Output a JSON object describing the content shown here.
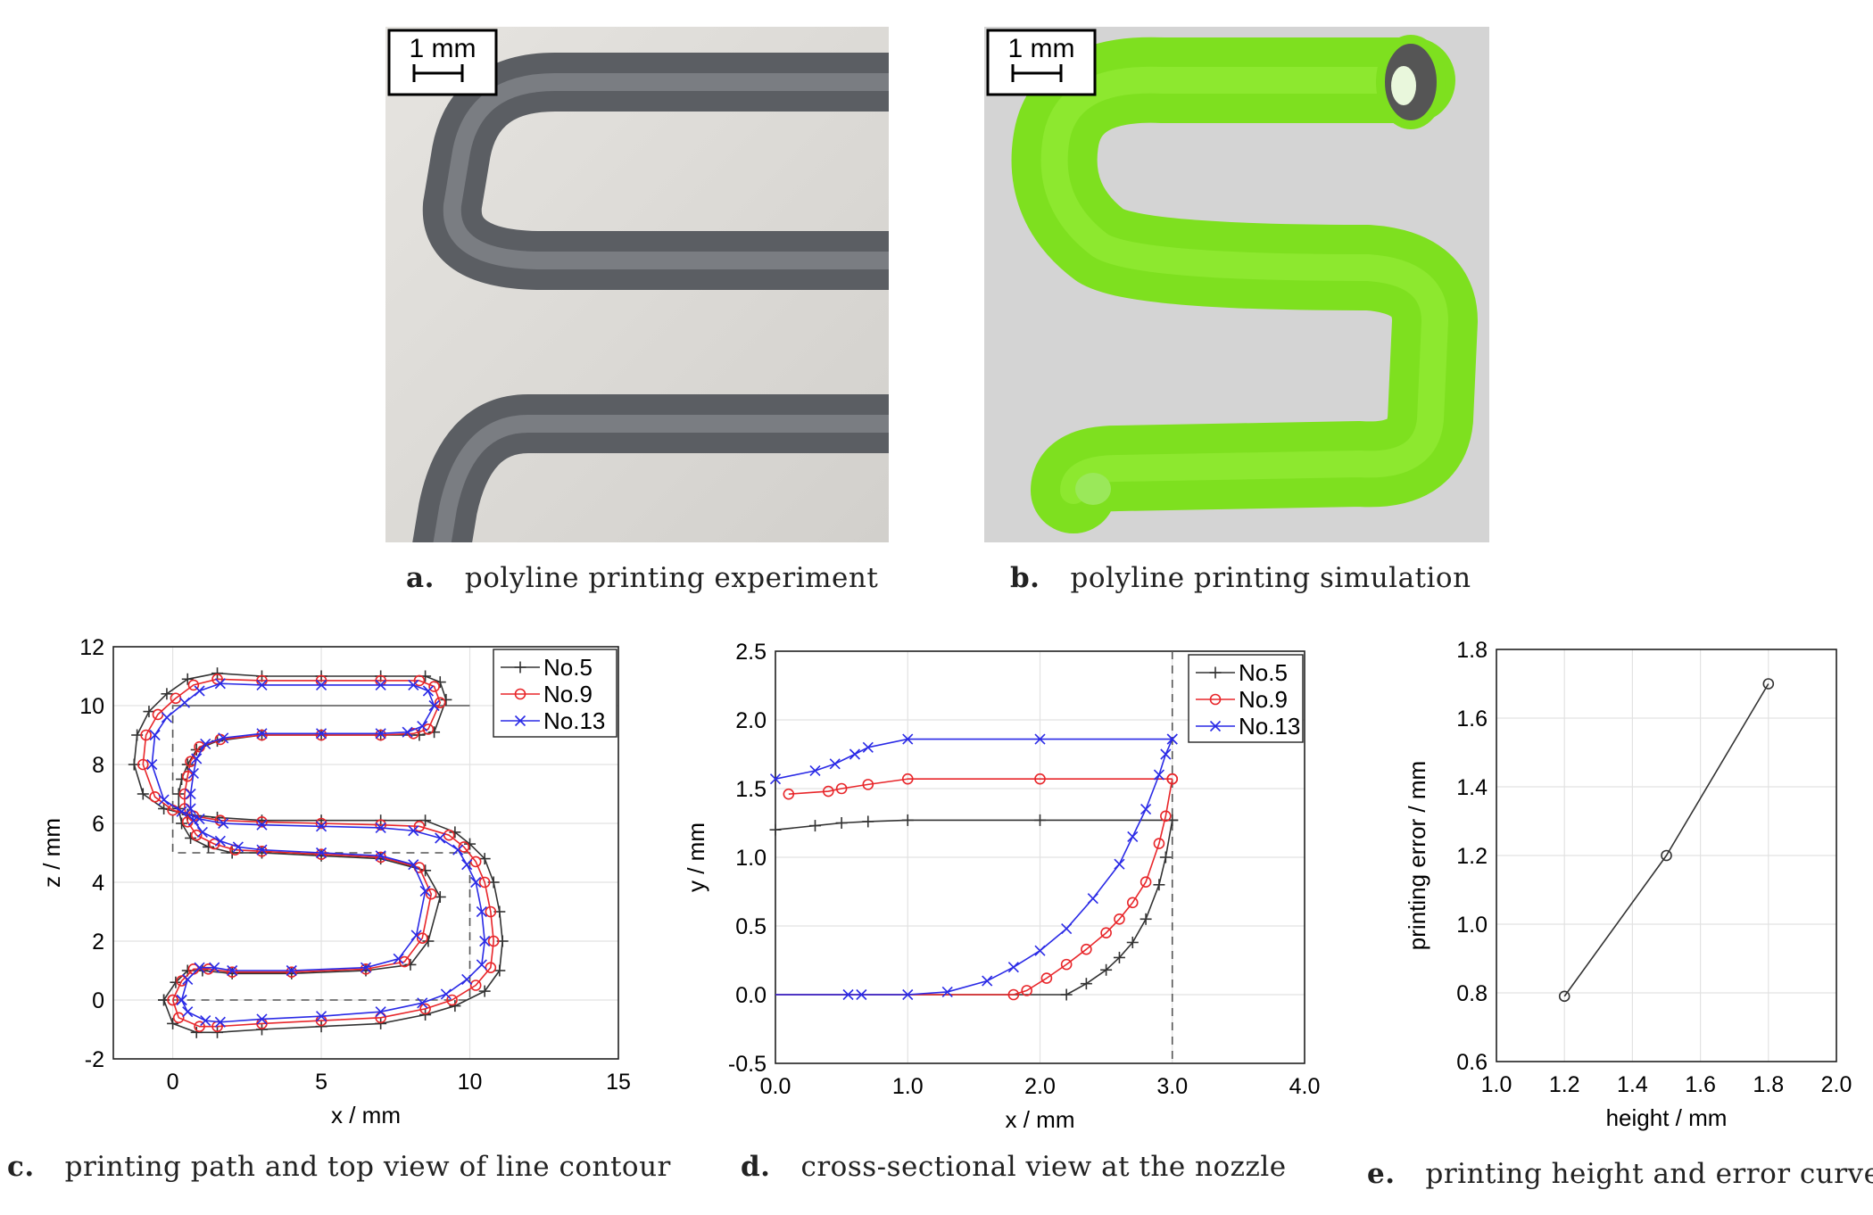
{
  "panels": {
    "a": {
      "letter": "a.",
      "caption": "polyline printing experiment",
      "scale_label": "1 mm"
    },
    "b": {
      "letter": "b.",
      "caption": "polyline printing simulation",
      "scale_label": "1 mm"
    },
    "c": {
      "letter": "c.",
      "caption": "printing path and top view of line contour"
    },
    "d": {
      "letter": "d.",
      "caption": "cross-sectional view at the nozzle"
    },
    "e": {
      "letter": "e.",
      "caption": "printing height and error curve"
    }
  },
  "colors": {
    "no5": "#333333",
    "no9": "#e8262a",
    "no13": "#2a2ae6",
    "filament": "#6a6d72",
    "sim": "#7ee01f",
    "simbg": "#d4d4d4"
  },
  "chart_data": [
    {
      "id": "c",
      "type": "line",
      "xlabel": "x / mm",
      "ylabel": "z / mm",
      "xlim": [
        -2,
        15
      ],
      "ylim": [
        -2,
        12
      ],
      "xticks": [
        0,
        5,
        10,
        15
      ],
      "yticks": [
        -2,
        0,
        2,
        4,
        6,
        8,
        10,
        12
      ],
      "legend_position": "top-right",
      "path": {
        "x": [
          0,
          0,
          10,
          10,
          0,
          0,
          10,
          10,
          0
        ],
        "y": [
          0,
          0,
          0,
          5,
          5,
          10,
          10,
          10,
          10
        ]
      },
      "series": [
        {
          "name": "No.5",
          "color": "#333333",
          "marker": "plus",
          "x": [
            -0.3,
            0.0,
            0.8,
            1.5,
            3.0,
            5.0,
            7.0,
            8.5,
            9.5,
            10.5,
            11.0,
            11.1,
            11.0,
            10.8,
            10.5,
            10.0,
            9.5,
            8.5,
            7.0,
            5.0,
            3.0,
            1.5,
            0.5,
            -0.3,
            -1.0,
            -1.3,
            -1.2,
            -0.8,
            -0.2,
            0.5,
            1.5,
            3.0,
            5.0,
            7.0,
            8.5,
            9.0,
            9.2,
            8.8,
            8.3,
            7.0,
            5.0,
            3.0,
            1.5,
            0.8,
            0.5,
            0.3,
            0.2,
            0.2,
            0.3,
            0.6,
            1.2,
            2.0,
            3.0,
            5.0,
            7.0,
            8.5,
            9.0,
            8.6,
            8.0,
            6.5,
            4.0,
            2.0,
            1.0,
            0.5,
            0.1,
            -0.3
          ],
          "y": [
            0.0,
            -0.8,
            -1.1,
            -1.1,
            -1.0,
            -0.9,
            -0.8,
            -0.5,
            -0.2,
            0.3,
            1.0,
            2.0,
            3.0,
            4.0,
            4.8,
            5.3,
            5.7,
            6.1,
            6.1,
            6.1,
            6.1,
            6.2,
            6.3,
            6.5,
            7.0,
            8.0,
            9.0,
            9.8,
            10.4,
            10.9,
            11.1,
            11.0,
            11.0,
            11.0,
            11.0,
            10.8,
            10.2,
            9.1,
            9.0,
            9.0,
            9.0,
            9.0,
            8.8,
            8.5,
            8.0,
            7.5,
            7.0,
            6.5,
            6.0,
            5.5,
            5.2,
            5.0,
            5.0,
            4.9,
            4.8,
            4.4,
            3.5,
            2.0,
            1.2,
            1.0,
            0.9,
            0.9,
            1.0,
            1.0,
            0.6,
            0.0
          ]
        },
        {
          "name": "No.9",
          "color": "#e8262a",
          "marker": "circle",
          "x": [
            0.0,
            0.2,
            0.9,
            1.5,
            3.0,
            5.0,
            7.0,
            8.5,
            9.4,
            10.2,
            10.7,
            10.8,
            10.7,
            10.5,
            10.2,
            9.8,
            9.3,
            8.3,
            7.0,
            5.0,
            3.0,
            1.6,
            0.7,
            0.0,
            -0.6,
            -1.0,
            -0.9,
            -0.5,
            0.1,
            0.7,
            1.5,
            3.0,
            5.0,
            7.0,
            8.3,
            8.8,
            9.0,
            8.6,
            8.1,
            7.0,
            5.0,
            3.0,
            1.6,
            0.9,
            0.6,
            0.5,
            0.4,
            0.4,
            0.5,
            0.8,
            1.4,
            2.1,
            3.0,
            5.0,
            7.0,
            8.3,
            8.7,
            8.4,
            7.8,
            6.5,
            4.0,
            2.0,
            1.2,
            0.7,
            0.3,
            0.0
          ],
          "y": [
            0.0,
            -0.6,
            -0.9,
            -0.9,
            -0.8,
            -0.7,
            -0.6,
            -0.3,
            0.0,
            0.5,
            1.1,
            2.0,
            3.0,
            4.0,
            4.7,
            5.2,
            5.6,
            5.9,
            5.95,
            6.0,
            6.05,
            6.1,
            6.25,
            6.45,
            6.9,
            8.0,
            9.0,
            9.7,
            10.25,
            10.7,
            10.9,
            10.85,
            10.85,
            10.85,
            10.85,
            10.65,
            10.1,
            9.2,
            9.05,
            9.0,
            9.0,
            9.0,
            8.85,
            8.6,
            8.1,
            7.6,
            7.0,
            6.5,
            6.05,
            5.6,
            5.3,
            5.1,
            5.05,
            4.95,
            4.85,
            4.5,
            3.6,
            2.1,
            1.3,
            1.05,
            0.95,
            0.95,
            1.05,
            1.05,
            0.65,
            0.0
          ]
        },
        {
          "name": "No.13",
          "color": "#2a2ae6",
          "marker": "x",
          "x": [
            0.3,
            0.5,
            1.1,
            1.6,
            3.0,
            5.0,
            7.0,
            8.4,
            9.2,
            9.9,
            10.4,
            10.5,
            10.4,
            10.2,
            9.9,
            9.6,
            9.0,
            8.1,
            7.0,
            5.0,
            3.0,
            1.7,
            0.9,
            0.3,
            -0.3,
            -0.7,
            -0.6,
            -0.2,
            0.4,
            0.9,
            1.6,
            3.0,
            5.0,
            7.0,
            8.1,
            8.6,
            8.8,
            8.4,
            7.9,
            7.0,
            5.0,
            3.0,
            1.7,
            1.1,
            0.8,
            0.7,
            0.6,
            0.6,
            0.7,
            1.0,
            1.6,
            2.2,
            3.0,
            5.0,
            7.0,
            8.1,
            8.5,
            8.2,
            7.6,
            6.5,
            4.0,
            2.0,
            1.4,
            0.9,
            0.5,
            0.3
          ],
          "y": [
            0.0,
            -0.4,
            -0.7,
            -0.75,
            -0.65,
            -0.55,
            -0.4,
            -0.1,
            0.2,
            0.7,
            1.2,
            2.0,
            3.0,
            4.0,
            4.6,
            5.1,
            5.5,
            5.75,
            5.85,
            5.9,
            5.95,
            6.0,
            6.15,
            6.4,
            6.8,
            8.0,
            9.0,
            9.6,
            10.1,
            10.5,
            10.75,
            10.7,
            10.7,
            10.7,
            10.7,
            10.5,
            10.0,
            9.3,
            9.1,
            9.05,
            9.05,
            9.05,
            8.9,
            8.7,
            8.2,
            7.7,
            7.0,
            6.5,
            6.1,
            5.7,
            5.4,
            5.2,
            5.1,
            5.0,
            4.9,
            4.6,
            3.7,
            2.2,
            1.4,
            1.1,
            1.0,
            1.0,
            1.1,
            1.1,
            0.7,
            0.0
          ]
        }
      ]
    },
    {
      "id": "d",
      "type": "line",
      "xlabel": "x / mm",
      "ylabel": "y / mm",
      "xlim": [
        0,
        4
      ],
      "ylim": [
        -0.5,
        2.5
      ],
      "xticks": [
        "0.0",
        "1.0",
        "2.0",
        "3.0",
        "4.0"
      ],
      "yticks": [
        "-0.5",
        "0.0",
        "0.5",
        "1.0",
        "1.5",
        "2.0",
        "2.5"
      ],
      "legend_position": "top-right",
      "vline_x": 3.0,
      "series": [
        {
          "name": "No.5",
          "color": "#333333",
          "marker": "plus",
          "upper": {
            "x": [
              0.0,
              0.3,
              0.5,
              0.7,
              1.0,
              2.0,
              3.0
            ],
            "y": [
              1.2,
              1.23,
              1.25,
              1.26,
              1.27,
              1.27,
              1.27
            ]
          },
          "lower": {
            "x": [
              0.0,
              2.2,
              2.35,
              2.5,
              2.6,
              2.7,
              2.8,
              2.9,
              2.95,
              3.0
            ],
            "y": [
              0.0,
              0.0,
              0.08,
              0.18,
              0.27,
              0.38,
              0.55,
              0.8,
              1.0,
              1.27
            ]
          }
        },
        {
          "name": "No.9",
          "color": "#e8262a",
          "marker": "circle",
          "upper": {
            "x": [
              0.1,
              0.4,
              0.5,
              0.7,
              1.0,
              2.0,
              3.0
            ],
            "y": [
              1.46,
              1.48,
              1.5,
              1.53,
              1.57,
              1.57,
              1.57
            ]
          },
          "lower": {
            "x": [
              0.0,
              1.8,
              1.9,
              2.05,
              2.2,
              2.35,
              2.5,
              2.6,
              2.7,
              2.8,
              2.9,
              2.95,
              3.0
            ],
            "y": [
              0.0,
              0.0,
              0.03,
              0.12,
              0.22,
              0.33,
              0.45,
              0.55,
              0.67,
              0.82,
              1.1,
              1.3,
              1.57
            ]
          }
        },
        {
          "name": "No.13",
          "color": "#2a2ae6",
          "marker": "x",
          "upper": {
            "x": [
              0.0,
              0.3,
              0.45,
              0.6,
              0.7,
              1.0,
              2.0,
              3.0
            ],
            "y": [
              1.57,
              1.63,
              1.68,
              1.75,
              1.8,
              1.86,
              1.86,
              1.86
            ]
          },
          "lower": {
            "x": [
              0.0,
              0.55,
              0.65,
              1.0,
              1.3,
              1.6,
              1.8,
              2.0,
              2.2,
              2.4,
              2.6,
              2.7,
              2.8,
              2.9,
              2.95,
              3.0
            ],
            "y": [
              0.0,
              0.0,
              0.0,
              0.0,
              0.02,
              0.1,
              0.2,
              0.32,
              0.48,
              0.7,
              0.95,
              1.15,
              1.35,
              1.6,
              1.75,
              1.86
            ]
          }
        }
      ]
    },
    {
      "id": "e",
      "type": "line",
      "xlabel": "height / mm",
      "ylabel": "printing error / mm",
      "xlim": [
        1.0,
        2.0
      ],
      "ylim": [
        0.6,
        1.8
      ],
      "xticks": [
        "1.0",
        "1.2",
        "1.4",
        "1.6",
        "1.8",
        "2.0"
      ],
      "yticks": [
        "0.6",
        "0.8",
        "1.0",
        "1.2",
        "1.4",
        "1.6",
        "1.8"
      ],
      "series": [
        {
          "color": "#333333",
          "marker": "circle",
          "x": [
            1.2,
            1.5,
            1.8
          ],
          "y": [
            0.79,
            1.2,
            1.7
          ]
        }
      ]
    }
  ]
}
